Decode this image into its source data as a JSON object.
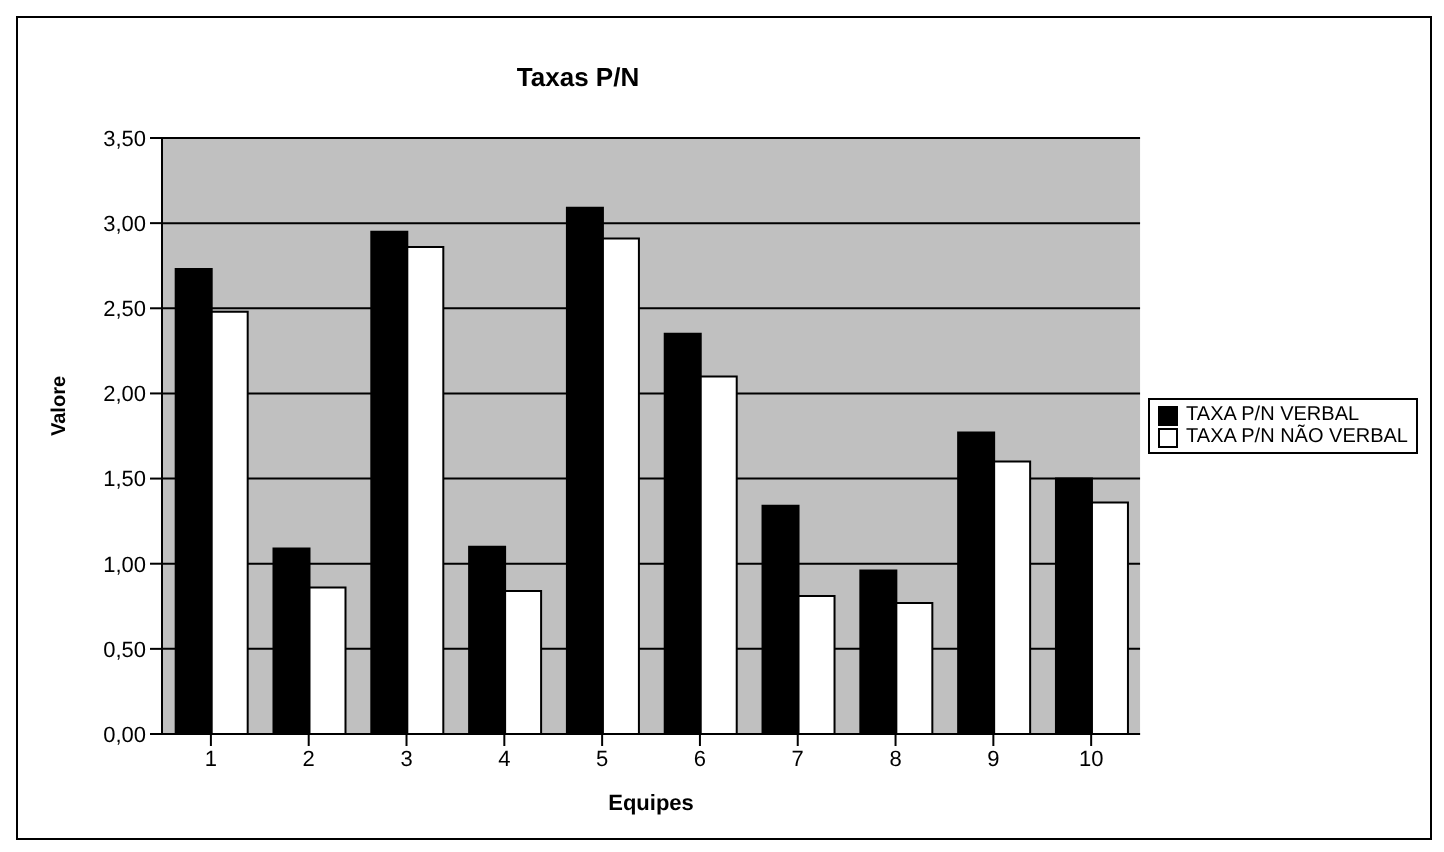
{
  "chart_data": {
    "type": "bar",
    "title": "Taxas P/N",
    "xlabel": "Equipes",
    "ylabel": "Valore",
    "categories": [
      "1",
      "2",
      "3",
      "4",
      "5",
      "6",
      "7",
      "8",
      "9",
      "10"
    ],
    "series": [
      {
        "name": "TAXA P/N VERBAL",
        "color": "#000000",
        "values": [
          2.73,
          1.09,
          2.95,
          1.1,
          3.09,
          2.35,
          1.34,
          0.96,
          1.77,
          1.5
        ]
      },
      {
        "name": "TAXA P/N NÃO VERBAL",
        "color": "#ffffff",
        "values": [
          2.48,
          0.86,
          2.86,
          0.84,
          2.91,
          2.1,
          0.81,
          0.77,
          1.6,
          1.36
        ]
      }
    ],
    "ylim": [
      0,
      3.5
    ],
    "yticks": [
      {
        "value": 0,
        "label": "0,00"
      },
      {
        "value": 0.5,
        "label": "0,50"
      },
      {
        "value": 1,
        "label": "1,00"
      },
      {
        "value": 1.5,
        "label": "1,50"
      },
      {
        "value": 2,
        "label": "2,00"
      },
      {
        "value": 2.5,
        "label": "2,50"
      },
      {
        "value": 3,
        "label": "3,00"
      },
      {
        "value": 3.5,
        "label": "3,50"
      }
    ],
    "grid": "y",
    "legend": "right"
  }
}
